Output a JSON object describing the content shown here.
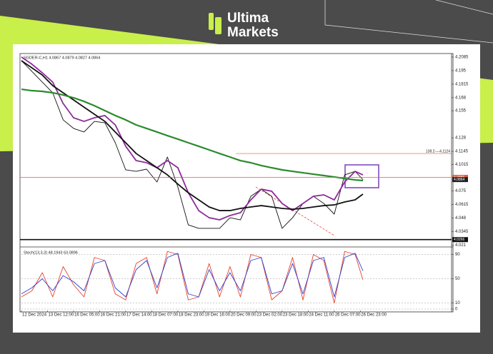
{
  "logo": {
    "line1": "Ultima",
    "line2": "Markets"
  },
  "chart_data": [
    {
      "type": "line",
      "title": "SGDER-C,H1 4.0867 4.0879 4.0827 4.0864",
      "x": [
        0,
        4,
        8,
        12,
        16,
        20,
        24,
        28,
        32,
        36,
        40,
        44,
        48,
        52,
        56,
        60,
        64,
        68,
        72,
        76,
        80,
        84,
        88,
        92,
        96,
        100,
        104,
        108,
        112,
        116,
        120,
        124,
        128,
        131
      ],
      "xlim": [
        0,
        165
      ],
      "ylim": [
        4.02,
        4.212
      ],
      "yticks": [
        4.2085,
        4.195,
        4.1815,
        4.168,
        4.155,
        4.128,
        4.1145,
        4.1015,
        4.075,
        4.0615,
        4.048,
        4.0345,
        4.021
      ],
      "series": [
        {
          "color": "#111111",
          "width": 0.9,
          "values": [
            4.2049,
            4.1942,
            4.1835,
            4.1729,
            4.1459,
            4.1374,
            4.1338,
            4.1444,
            4.143,
            4.1231,
            4.0961,
            4.0946,
            4.0968,
            4.084,
            4.1089,
            4.079,
            4.0413,
            4.0378,
            4.0378,
            4.0378,
            4.0484,
            4.0463,
            4.0698,
            4.0769,
            4.0698,
            4.0378,
            4.0484,
            4.0626,
            4.0698,
            4.0626,
            4.052,
            4.0911,
            4.0946,
            4.0864
          ]
        },
        {
          "color": "#8e2a9c",
          "width": 1.8,
          "values": [
            4.2085,
            4.2014,
            4.1928,
            4.1835,
            4.1622,
            4.148,
            4.1444,
            4.148,
            4.1502,
            4.1409,
            4.1196,
            4.1053,
            4.1032,
            4.0982,
            4.1053,
            4.0982,
            4.0733,
            4.0555,
            4.0484,
            4.0463,
            4.0506,
            4.0534,
            4.0662,
            4.0769,
            4.0748,
            4.0626,
            4.0555,
            4.0626,
            4.0698,
            4.0712,
            4.0662,
            4.084,
            4.0946,
            4.0911
          ]
        },
        {
          "color": "#111111",
          "width": 1.8,
          "values": [
            4.2049,
            4.1978,
            4.1906,
            4.18,
            4.1729,
            4.1658,
            4.1586,
            4.1515,
            4.1444,
            4.1338,
            4.1231,
            4.1124,
            4.1053,
            4.0982,
            4.0911,
            4.0819,
            4.0733,
            4.0662,
            4.0591,
            4.0555,
            4.0555,
            4.0577,
            4.0591,
            4.0605,
            4.0591,
            4.0577,
            4.0569,
            4.0577,
            4.0591,
            4.0605,
            4.0612,
            4.0641,
            4.0662,
            4.0719
          ]
        },
        {
          "color": "#2c8a2c",
          "width": 2.2,
          "values": [
            4.1764,
            4.175,
            4.1743,
            4.1729,
            4.1707,
            4.1679,
            4.1643,
            4.16,
            4.1551,
            4.1502,
            4.1459,
            4.1409,
            4.1374,
            4.1338,
            4.1302,
            4.1267,
            4.1231,
            4.1196,
            4.116,
            4.1124,
            4.1089,
            4.1053,
            4.1032,
            4.1004,
            4.0982,
            4.0961,
            4.0946,
            4.0932,
            4.0918,
            4.0904,
            4.089,
            4.0875,
            4.0861,
            4.0854
          ]
        }
      ],
      "annotations": [
        {
          "value": 4.1124,
          "label": "138.2----4.1124",
          "color": "#e8593c"
        }
      ],
      "levels": [
        {
          "value": 4.0886,
          "label": "4.0886",
          "color": "#e8593c",
          "line": true
        },
        {
          "value": 4.0864,
          "label": "4.0864",
          "color": "#222222",
          "line": false
        },
        {
          "value": 4.0266,
          "label": "4.0266",
          "color": "#111111",
          "line": true
        }
      ]
    },
    {
      "type": "line",
      "title": "Stoch(13,3,3) 48.1943 63.0896",
      "x": [
        0,
        4,
        8,
        12,
        16,
        20,
        24,
        28,
        32,
        36,
        40,
        44,
        48,
        52,
        56,
        60,
        64,
        68,
        72,
        76,
        80,
        84,
        88,
        92,
        96,
        100,
        104,
        108,
        112,
        116,
        120,
        124,
        128,
        131
      ],
      "xlim": [
        0,
        165
      ],
      "ylim": [
        0,
        100
      ],
      "yticks": [
        90,
        50,
        10,
        0
      ],
      "grid": true,
      "xticks": [
        {
          "value": 0,
          "label": "12 Dec 2024"
        },
        {
          "value": 10,
          "label": "13 Dec 12:00"
        },
        {
          "value": 20,
          "label": "16 Dec 05:00"
        },
        {
          "value": 30,
          "label": "16 Dec 21:00"
        },
        {
          "value": 40,
          "label": "17 Dec 14:00"
        },
        {
          "value": 50,
          "label": "18 Dec 07:00"
        },
        {
          "value": 60,
          "label": "18 Dec 23:00"
        },
        {
          "value": 70,
          "label": "19 Dec 16:00"
        },
        {
          "value": 80,
          "label": "20 Dec 09:00"
        },
        {
          "value": 90,
          "label": "23 Dec 02:00"
        },
        {
          "value": 100,
          "label": "23 Dec 18:00"
        },
        {
          "value": 110,
          "label": "24 Dec 11:00"
        },
        {
          "value": 120,
          "label": "26 Dec 07:00"
        },
        {
          "value": 130,
          "label": "26 Dec 23:00"
        }
      ],
      "series": [
        {
          "color": "#e8402c",
          "width": 0.9,
          "values": [
            20,
            30,
            60,
            20,
            70,
            40,
            20,
            85,
            80,
            25,
            15,
            75,
            85,
            25,
            95,
            90,
            15,
            20,
            75,
            20,
            70,
            20,
            90,
            85,
            15,
            30,
            85,
            15,
            90,
            80,
            10,
            95,
            90,
            48.1943
          ]
        },
        {
          "color": "#2f3fd0",
          "width": 0.9,
          "values": [
            25,
            35,
            50,
            30,
            55,
            45,
            30,
            75,
            80,
            35,
            20,
            65,
            80,
            35,
            85,
            92,
            25,
            20,
            65,
            30,
            60,
            30,
            80,
            85,
            25,
            30,
            75,
            25,
            80,
            85,
            20,
            85,
            92,
            63.0896
          ]
        }
      ]
    }
  ]
}
